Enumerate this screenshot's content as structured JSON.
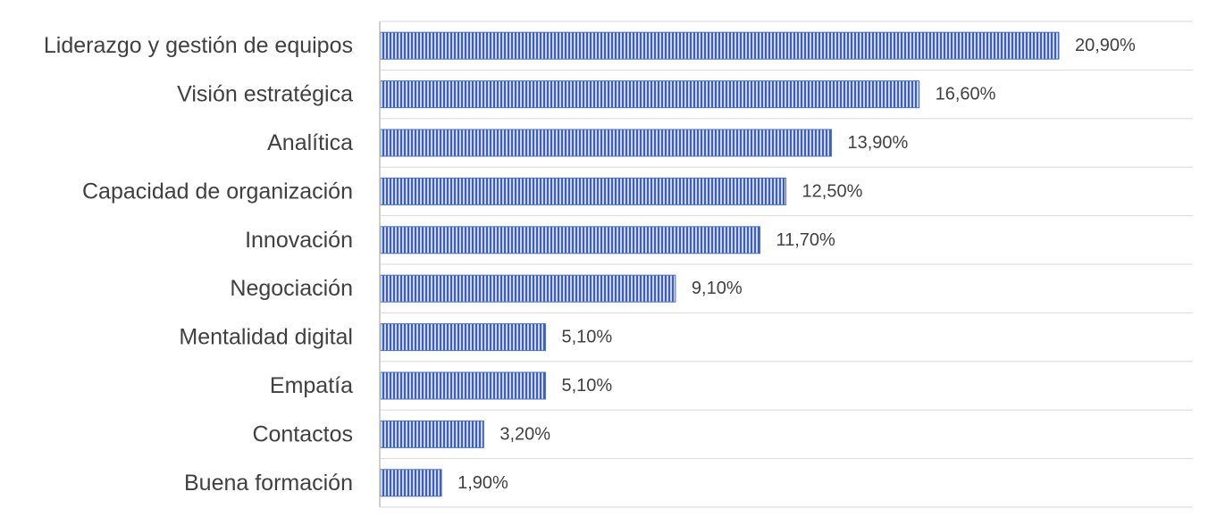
{
  "chart_data": {
    "type": "bar",
    "orientation": "horizontal",
    "categories": [
      "Liderazgo y gestión de equipos",
      "Visión estratégica",
      "Analítica",
      "Capacidad de organización",
      "Innovación",
      "Negociación",
      "Mentalidad digital",
      "Empatía",
      "Contactos",
      "Buena formación"
    ],
    "values": [
      20.9,
      16.6,
      13.9,
      12.5,
      11.7,
      9.1,
      5.1,
      5.1,
      3.2,
      1.9
    ],
    "data_labels": [
      "20,90%",
      "16,60%",
      "13,90%",
      "12,50%",
      "11,70%",
      "9,10%",
      "5,10%",
      "5,10%",
      "3,20%",
      "1,90%"
    ],
    "title": "",
    "xlabel": "",
    "ylabel": "",
    "xlim": [
      0,
      25
    ],
    "grid": true,
    "legend": "none",
    "bar_color": "#4a6fc4",
    "bar_stripe_color": "#2f4f9a",
    "bar_background": "#c9d3ef"
  }
}
